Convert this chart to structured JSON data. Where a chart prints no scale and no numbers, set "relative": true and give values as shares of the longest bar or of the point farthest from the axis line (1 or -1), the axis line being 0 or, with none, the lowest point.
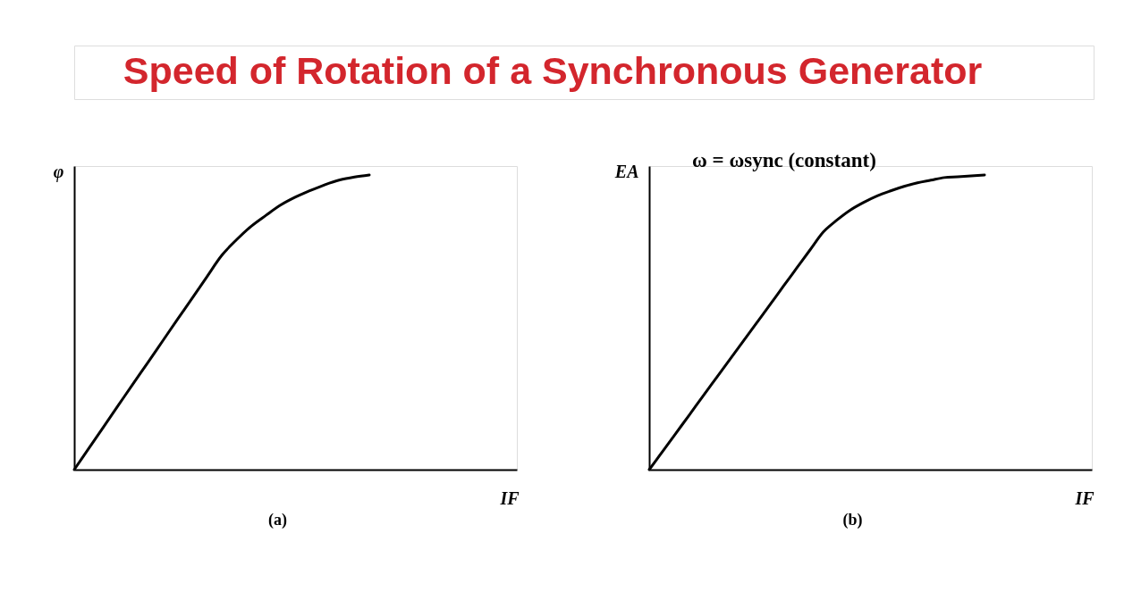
{
  "chart_data": [
    {
      "type": "other",
      "title": "Speed of Rotation of a Synchronous Generator"
    },
    {
      "type": "line",
      "title": "(a)",
      "xlabel": "IF",
      "ylabel": "φ",
      "relative": true,
      "tick_labels": false,
      "categories": [
        null,
        null,
        null,
        null,
        null,
        null,
        null,
        null,
        null,
        null,
        null,
        null,
        null,
        null,
        null,
        null,
        null,
        null,
        null,
        null,
        null,
        null,
        null,
        null,
        null,
        null,
        null,
        null,
        null,
        null,
        null
      ],
      "series": [
        {
          "color": "#000000",
          "values": [
            0,
            0.073,
            0.146,
            0.219,
            0.292,
            0.364,
            0.437,
            0.51,
            0.582,
            0.655,
            0.727,
            0.78,
            0.826,
            0.863,
            0.898,
            0.925,
            0.947,
            0.967,
            0.983,
            0.993,
            1,
            null,
            null,
            null,
            null,
            null,
            null,
            null,
            null,
            null,
            null
          ]
        }
      ]
    },
    {
      "type": "line",
      "title": "(b)",
      "xlabel": "IF",
      "ylabel": "EA",
      "relative": true,
      "tick_labels": false,
      "annotations": [
        "ω = ωsync (constant)"
      ],
      "categories": [
        null,
        null,
        null,
        null,
        null,
        null,
        null,
        null,
        null,
        null,
        null,
        null,
        null,
        null,
        null,
        null,
        null,
        null,
        null,
        null,
        null,
        null,
        null,
        null,
        null,
        null,
        null,
        null,
        null,
        null,
        null,
        null,
        null,
        null
      ],
      "series": [
        {
          "color": "#000000",
          "values": [
            0,
            0.062,
            0.124,
            0.186,
            0.249,
            0.311,
            0.373,
            0.435,
            0.497,
            0.559,
            0.622,
            0.684,
            0.746,
            0.807,
            0.847,
            0.881,
            0.907,
            0.929,
            0.946,
            0.961,
            0.973,
            0.982,
            0.991,
            0.994,
            0.997,
            1,
            null,
            null,
            null,
            null,
            null,
            null,
            null,
            null
          ]
        }
      ]
    }
  ]
}
